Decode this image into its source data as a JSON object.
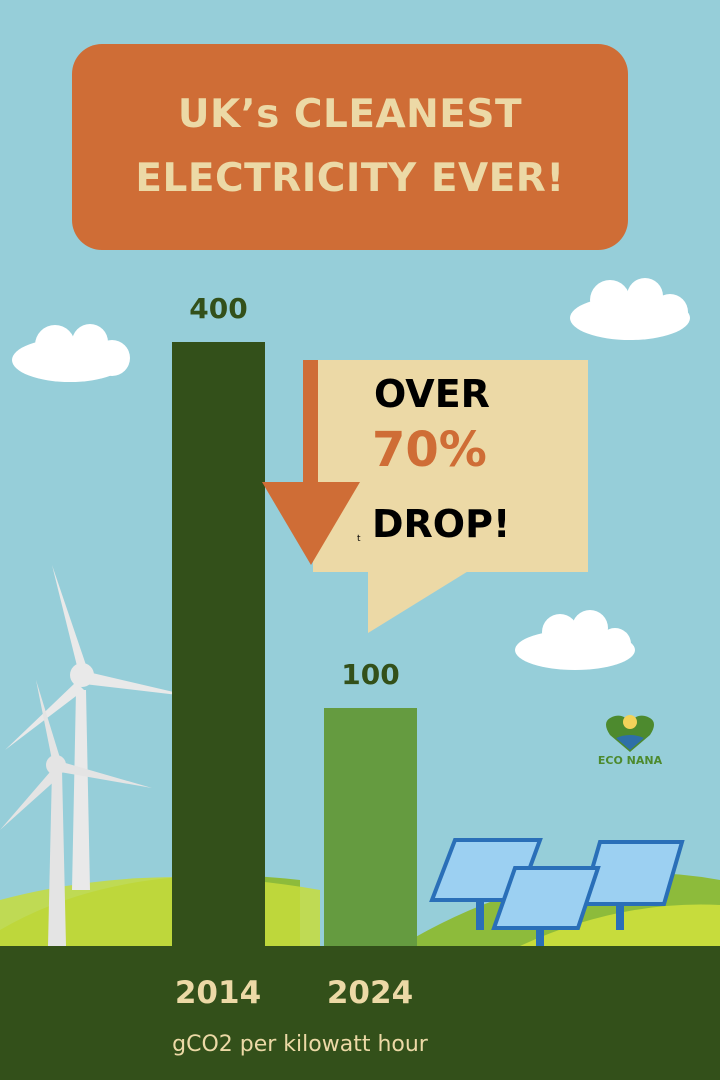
{
  "title": {
    "line1": "UK’s CLEANEST",
    "line2": "ELECTRICITY EVER!"
  },
  "callout": {
    "line1": "OVER",
    "line2": "70%",
    "line3": "DROP!",
    "stray_char": "t"
  },
  "logo": {
    "text": "ECO NANA"
  },
  "colors": {
    "sky": "#96ced9",
    "title_bg": "#cf6d36",
    "title_text": "#ecd9a6",
    "bar_2014": "#33501a",
    "bar_2024": "#659b40",
    "callout_bg": "#ecd9a6",
    "arrow": "#cf6d36",
    "ground": "#33501a"
  },
  "chart_data": {
    "type": "bar",
    "categories": [
      "2014",
      "2024"
    ],
    "values": [
      400,
      100
    ],
    "data_labels": [
      "400",
      "100"
    ],
    "xlabel": "gCO2 per kilowatt hour",
    "title": "UK’s CLEANEST ELECTRICITY EVER!"
  }
}
